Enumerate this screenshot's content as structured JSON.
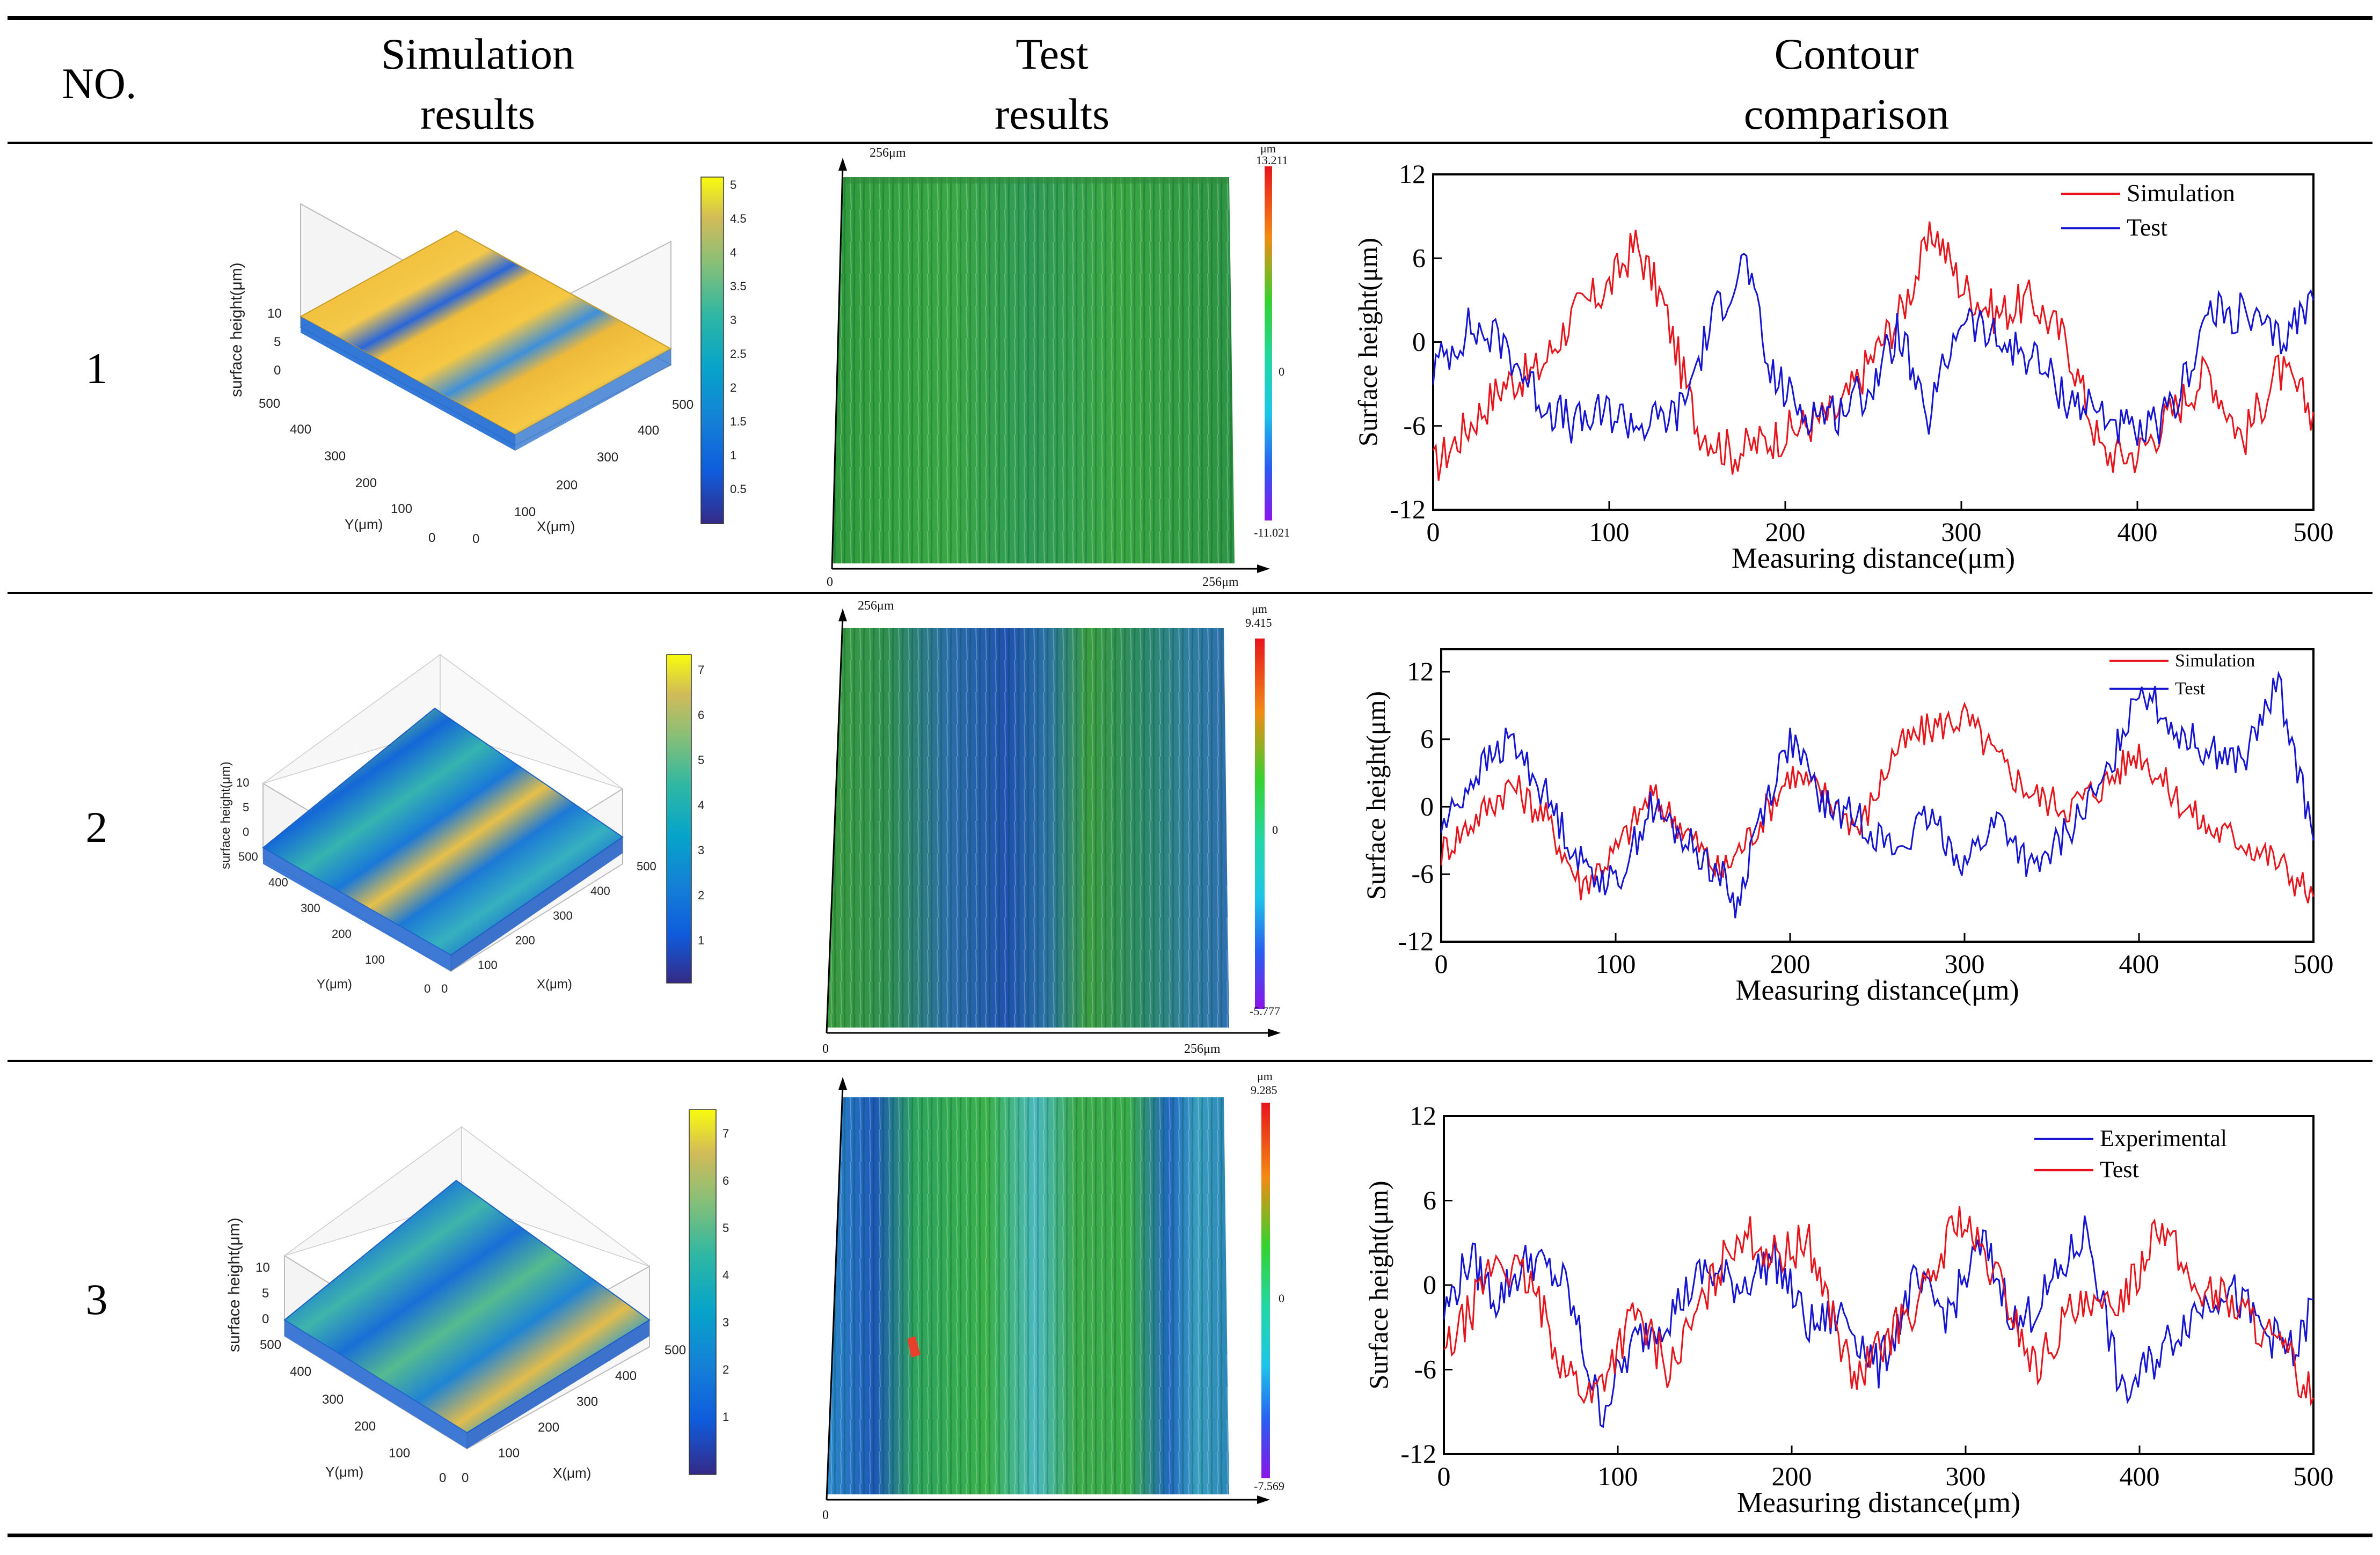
{
  "header": {
    "no": "NO.",
    "simulation": [
      "Simulation",
      "results"
    ],
    "test": [
      "Test",
      "results"
    ],
    "contour": [
      "Contour",
      "comparison"
    ]
  },
  "rows": [
    {
      "no": "1",
      "simulation": {
        "z_label": "surface height(μm)",
        "y_label": "Y(μm)",
        "x_label": "X(μm)",
        "z_ticks": [
          "10",
          "5",
          "0"
        ],
        "y_ticks": [
          "500",
          "400",
          "300",
          "200",
          "100",
          "0"
        ],
        "x_ticks": [
          "0",
          "100",
          "200",
          "300",
          "400",
          "500"
        ],
        "colorbar_ticks": [
          "5",
          "4.5",
          "4",
          "3.5",
          "3",
          "2.5",
          "2",
          "1.5",
          "1",
          "0.5"
        ]
      },
      "test": {
        "top_label": "256μm",
        "bottom_label": "256μm",
        "origin": "0",
        "unit": "μm",
        "max": "13.211",
        "zero": "0",
        "min": "-11.021"
      },
      "contour": {
        "legend": [
          "Simulation",
          "Test"
        ]
      }
    },
    {
      "no": "2",
      "simulation": {
        "z_label": "surface height(μm)",
        "y_label": "Y(μm)",
        "x_label": "X(μm)",
        "z_ticks": [
          "10",
          "5",
          "0"
        ],
        "y_ticks": [
          "500",
          "400",
          "300",
          "200",
          "100",
          "0"
        ],
        "x_ticks": [
          "0",
          "100",
          "200",
          "300",
          "400",
          "500"
        ],
        "colorbar_ticks": [
          "7",
          "6",
          "5",
          "4",
          "3",
          "2",
          "1"
        ]
      },
      "test": {
        "top_label": "256μm",
        "bottom_label": "256μm",
        "origin": "0",
        "unit": "μm",
        "max": "9.415",
        "zero": "0",
        "min": "-5.777"
      },
      "contour": {
        "legend": [
          "Simulation",
          "Test"
        ]
      }
    },
    {
      "no": "3",
      "simulation": {
        "z_label": "surface height(μm)",
        "y_label": "Y(μm)",
        "x_label": "X(μm)",
        "z_ticks": [
          "10",
          "5",
          "0"
        ],
        "y_ticks": [
          "500",
          "400",
          "300",
          "200",
          "100",
          "0"
        ],
        "x_ticks": [
          "0",
          "100",
          "200",
          "300",
          "400",
          "500"
        ],
        "colorbar_ticks": [
          "7",
          "6",
          "5",
          "4",
          "3",
          "2",
          "1"
        ]
      },
      "test": {
        "top_label": "",
        "bottom_label": "",
        "origin": "0",
        "unit": "μm",
        "max": "9.285",
        "zero": "0",
        "min": "-7.569"
      },
      "contour": {
        "legend": [
          "Experimental",
          "Test"
        ]
      }
    }
  ],
  "chart_data": [
    {
      "type": "line",
      "xlabel": "Measuring distance(μm)",
      "ylabel": "Surface height(μm)",
      "xlim": [
        0,
        500
      ],
      "ylim": [
        -12,
        12
      ],
      "xticks": [
        0,
        100,
        200,
        300,
        400,
        500
      ],
      "yticks": [
        -12,
        -6,
        0,
        6,
        12
      ],
      "legend_position": "top-right",
      "series": [
        {
          "name": "Simulation",
          "color": "#e8141c",
          "x": [
            0,
            20,
            40,
            60,
            80,
            100,
            115,
            130,
            150,
            170,
            190,
            210,
            230,
            250,
            265,
            285,
            300,
            320,
            340,
            360,
            380,
            400,
            420,
            440,
            460,
            480,
            500
          ],
          "y": [
            -9,
            -6,
            -3,
            -2,
            2,
            4,
            7,
            3,
            -6,
            -8,
            -7,
            -6,
            -5,
            -1,
            2,
            8,
            4,
            2,
            3,
            0,
            -8,
            -8,
            -5,
            -2,
            -7,
            -2,
            -5
          ]
        },
        {
          "name": "Test",
          "color": "#1414d2",
          "x": [
            0,
            20,
            40,
            60,
            80,
            100,
            120,
            140,
            160,
            178,
            190,
            210,
            230,
            250,
            265,
            280,
            300,
            320,
            340,
            360,
            380,
            400,
            420,
            440,
            460,
            480,
            500
          ],
          "y": [
            -2,
            1,
            0,
            -4,
            -6,
            -5,
            -6,
            -5,
            2,
            6,
            -2,
            -5,
            -5,
            -3,
            1,
            -6,
            2,
            0,
            -1,
            -4,
            -5,
            -7,
            -5,
            2,
            2,
            0,
            3
          ]
        }
      ]
    },
    {
      "type": "line",
      "xlabel": "Measuring distance(μm)",
      "ylabel": "Surface height(μm)",
      "xlim": [
        0,
        500
      ],
      "ylim": [
        -12,
        14
      ],
      "xticks": [
        0,
        100,
        200,
        300,
        400,
        500
      ],
      "yticks": [
        -12,
        -6,
        0,
        6,
        12
      ],
      "legend_position": "top-right",
      "series": [
        {
          "name": "Simulation",
          "color": "#e8141c",
          "x": [
            0,
            20,
            40,
            60,
            80,
            100,
            120,
            140,
            160,
            180,
            200,
            220,
            240,
            260,
            280,
            300,
            320,
            340,
            360,
            380,
            400,
            420,
            440,
            460,
            480,
            500
          ],
          "y": [
            -4,
            -1,
            2,
            -1,
            -7,
            -4,
            1,
            -2,
            -6,
            -2,
            3,
            1,
            -2,
            5,
            7,
            8,
            4,
            1,
            0,
            2,
            5,
            1,
            -2,
            -3,
            -5,
            -8
          ]
        },
        {
          "name": "Test",
          "color": "#1414d2",
          "x": [
            0,
            20,
            40,
            60,
            80,
            100,
            120,
            140,
            160,
            170,
            180,
            200,
            220,
            240,
            260,
            280,
            300,
            320,
            340,
            360,
            380,
            400,
            420,
            440,
            460,
            480,
            500
          ],
          "y": [
            -2,
            3,
            6,
            1,
            -5,
            -7,
            0,
            -3,
            -6,
            -9,
            -2,
            6,
            0,
            -1,
            -4,
            -1,
            -5,
            -1,
            -6,
            -2,
            2,
            11,
            7,
            5,
            4,
            11,
            -3
          ]
        }
      ]
    },
    {
      "type": "line",
      "xlabel": "Measuring distance(μm)",
      "ylabel": "Surface height(μm)",
      "xlim": [
        0,
        500
      ],
      "ylim": [
        -12,
        12
      ],
      "xticks": [
        0,
        100,
        200,
        300,
        400,
        500
      ],
      "yticks": [
        -12,
        -6,
        0,
        6,
        12
      ],
      "legend_position": "top-right",
      "series": [
        {
          "name": "Experimental",
          "color": "#1414d2",
          "x": [
            0,
            15,
            30,
            50,
            70,
            90,
            110,
            130,
            150,
            170,
            190,
            210,
            230,
            250,
            270,
            290,
            310,
            330,
            350,
            370,
            390,
            410,
            430,
            450,
            470,
            490,
            500
          ],
          "y": [
            -2,
            2,
            -1,
            2,
            0,
            -9,
            -4,
            -2,
            1,
            0,
            2,
            -3,
            -2,
            -6,
            0,
            -2,
            3,
            -3,
            0,
            4,
            -8,
            -5,
            -2,
            0,
            -3,
            -5,
            -1
          ]
        },
        {
          "name": "Test",
          "color": "#e8141c",
          "x": [
            0,
            15,
            30,
            50,
            70,
            85,
            110,
            130,
            150,
            170,
            190,
            210,
            236,
            260,
            280,
            295,
            320,
            340,
            360,
            380,
            400,
            410,
            430,
            450,
            470,
            490,
            500
          ],
          "y": [
            -5,
            -2,
            2,
            0,
            -6,
            -8,
            -2,
            -6,
            -1,
            4,
            2,
            3,
            -7,
            -3,
            0,
            5,
            0,
            -6,
            -2,
            -2,
            1,
            5,
            0,
            -1,
            -3,
            -6,
            -8
          ]
        }
      ]
    }
  ]
}
